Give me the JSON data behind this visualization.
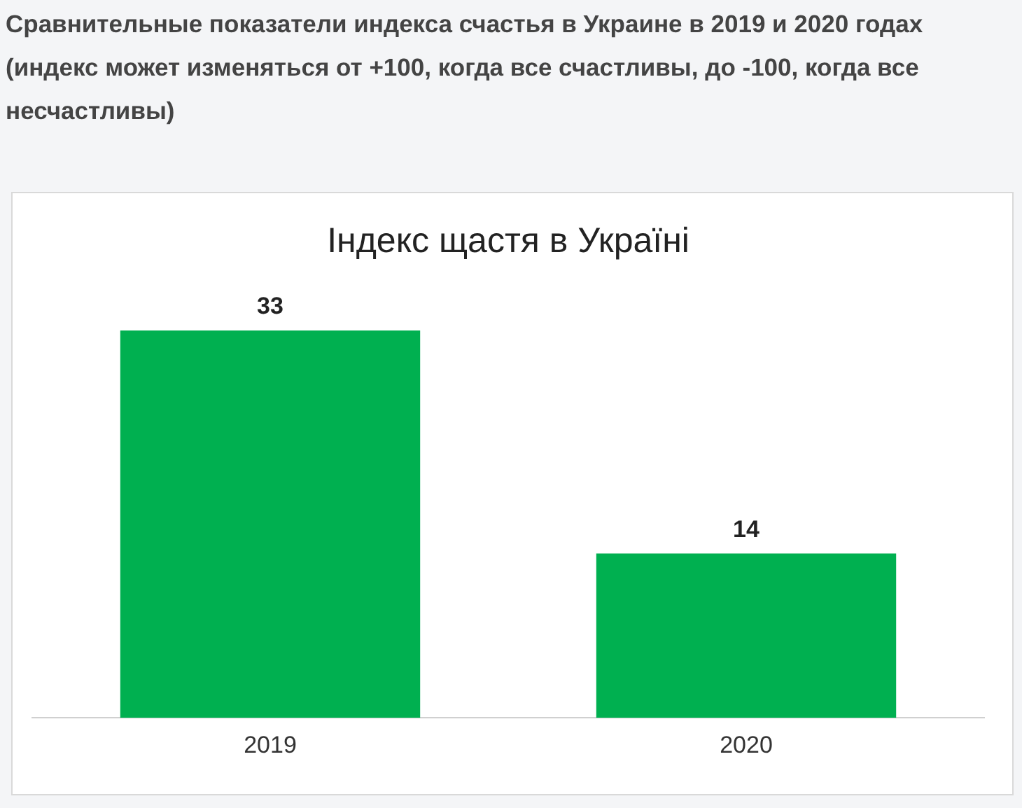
{
  "chart_data": {
    "type": "bar",
    "title": "Індекс щастя в Україні",
    "annotations": [
      "Сравнительные показатели индекса счастья в Украине в 2019 и 2020 годах (индекс может изменяться от +100, когда все счастливы, до -100, когда все несчастливы)"
    ],
    "categories": [
      "2019",
      "2020"
    ],
    "values": [
      33,
      14
    ],
    "color": "#00b050",
    "data_labels": true,
    "grid": false,
    "legend": false
  }
}
